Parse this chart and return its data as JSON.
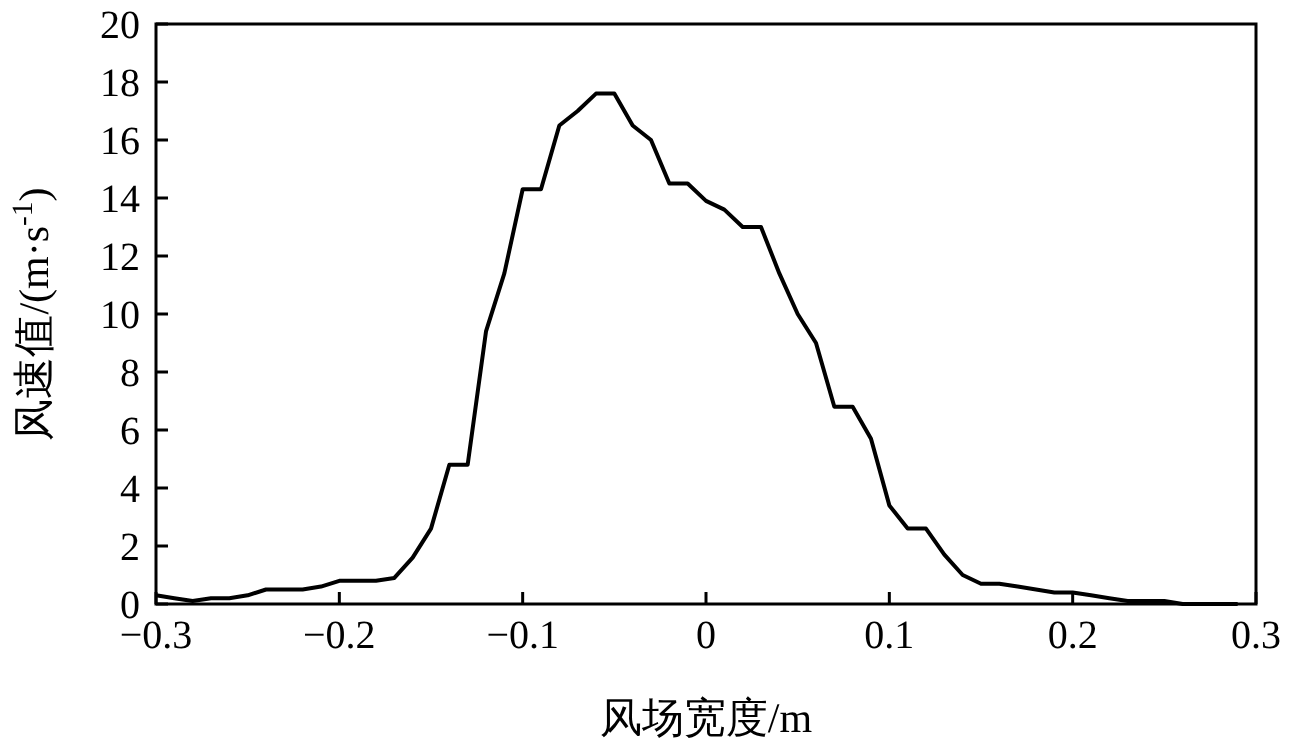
{
  "chart_data": {
    "type": "line",
    "xlabel": "风场宽度/m",
    "ylabel": "风速值/(m·s$^{-1}$)",
    "x": [
      -0.3,
      -0.29,
      -0.28,
      -0.27,
      -0.26,
      -0.25,
      -0.24,
      -0.23,
      -0.22,
      -0.21,
      -0.2,
      -0.19,
      -0.18,
      -0.17,
      -0.16,
      -0.15,
      -0.14,
      -0.13,
      -0.12,
      -0.11,
      -0.1,
      -0.09,
      -0.08,
      -0.07,
      -0.06,
      -0.05,
      -0.04,
      -0.03,
      -0.02,
      -0.01,
      0,
      0.01,
      0.02,
      0.03,
      0.04,
      0.05,
      0.06,
      0.07,
      0.08,
      0.09,
      0.1,
      0.11,
      0.12,
      0.13,
      0.14,
      0.15,
      0.16,
      0.17,
      0.18,
      0.19,
      0.2,
      0.21,
      0.22,
      0.23,
      0.24,
      0.25,
      0.26,
      0.27,
      0.28,
      0.29
    ],
    "series": [
      {
        "color": "#000000",
        "values": [
          0.3,
          0.2,
          0.1,
          0.2,
          0.2,
          0.3,
          0.5,
          0.5,
          0.5,
          0.6,
          0.8,
          0.8,
          0.8,
          0.9,
          1.6,
          2.6,
          4.8,
          4.8,
          9.4,
          11.4,
          14.3,
          14.3,
          16.5,
          17,
          17.6,
          17.6,
          16.5,
          16,
          14.5,
          14.5,
          13.9,
          13.6,
          13,
          13,
          11.4,
          10,
          9,
          6.8,
          6.8,
          5.7,
          3.4,
          2.6,
          2.6,
          1.7,
          1,
          0.7,
          0.7,
          0.6,
          0.5,
          0.4,
          0.4,
          0.3,
          0.2,
          0.1,
          0.1,
          0.1,
          0,
          0,
          0,
          0
        ]
      }
    ],
    "xlim": [
      -0.3,
      0.3
    ],
    "xticks": [
      {
        "value": -0.3,
        "label": "−0.3"
      },
      {
        "value": -0.2,
        "label": "−0.2"
      },
      {
        "value": -0.1,
        "label": "−0.1"
      },
      0,
      0.1,
      0.2,
      0.3
    ],
    "ylim": [
      0,
      20
    ],
    "yticks": [
      0,
      2,
      4,
      6,
      8,
      10,
      12,
      14,
      16,
      18,
      20
    ],
    "grid": false,
    "marker": "none",
    "line_style": "solid"
  }
}
